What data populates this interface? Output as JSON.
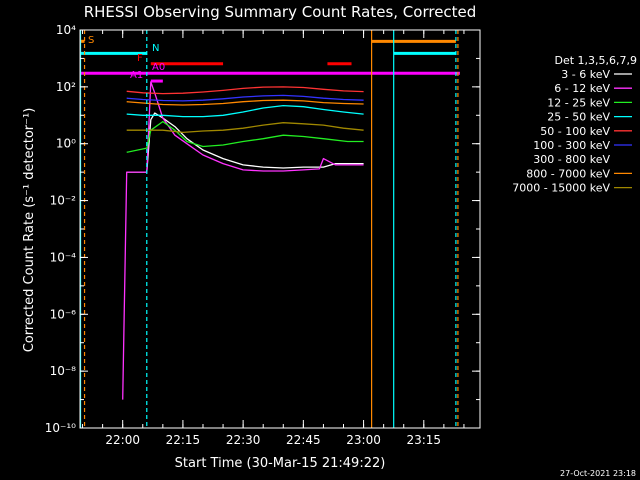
{
  "chart_data": {
    "type": "line",
    "title": "RHESSI Observing Summary Count Rates, Corrected",
    "xlabel": "Start Time (30-Mar-15 21:49:22)",
    "ylabel": "Corrected Count Rate (s⁻¹ detector⁻¹)",
    "yscale": "log",
    "ylim": [
      1e-10,
      10000
    ],
    "xlim": [
      "21:49:22",
      "23:29:00"
    ],
    "x_ticks": [
      "22:00",
      "22:15",
      "22:30",
      "22:45",
      "23:00",
      "23:15"
    ],
    "y_ticks": [
      "10⁻¹⁰",
      "10⁻⁸",
      "10⁻⁶",
      "10⁻⁴",
      "10⁻²",
      "10⁰",
      "10²",
      "10⁴"
    ],
    "legend_title": "Det 1,3,5,6,7,9",
    "legend_position": "right",
    "grid": false,
    "series": [
      {
        "name": "3 - 6 keV",
        "color": "#ffffff",
        "x": [
          "22:01",
          "22:04",
          "22:06",
          "22:07",
          "22:08",
          "22:10",
          "22:13",
          "22:16",
          "22:20",
          "22:25",
          "22:30",
          "22:35",
          "22:40",
          "22:45",
          "22:50",
          "22:53",
          "22:56",
          "23:00"
        ],
        "values": [
          0.1,
          0.1,
          0.1,
          7,
          12,
          8,
          4,
          1.5,
          0.6,
          0.3,
          0.18,
          0.15,
          0.14,
          0.15,
          0.15,
          0.2,
          0.2,
          0.2
        ]
      },
      {
        "name": "6 - 12 keV",
        "color": "#ff33ff",
        "x": [
          "22:00",
          "22:01",
          "22:02",
          "22:04",
          "22:06",
          "22:07",
          "22:08",
          "22:10",
          "22:13",
          "22:16",
          "22:20",
          "22:25",
          "22:30",
          "22:35",
          "22:40",
          "22:45",
          "22:49",
          "22:50",
          "22:53",
          "22:56",
          "23:00"
        ],
        "values": [
          1e-09,
          0.1,
          0.1,
          0.1,
          0.1,
          150,
          60,
          8,
          2,
          1,
          0.4,
          0.2,
          0.12,
          0.11,
          0.11,
          0.12,
          0.13,
          0.3,
          0.18,
          0.18,
          0.18
        ]
      },
      {
        "name": "12 - 25 keV",
        "color": "#22ee22",
        "x": [
          "22:01",
          "22:06",
          "22:07",
          "22:10",
          "22:13",
          "22:16",
          "22:20",
          "22:25",
          "22:30",
          "22:35",
          "22:40",
          "22:45",
          "22:50",
          "22:56",
          "23:00"
        ],
        "values": [
          0.5,
          0.7,
          3,
          6,
          3,
          1.2,
          0.8,
          0.9,
          1.2,
          1.5,
          2,
          1.8,
          1.5,
          1.2,
          1.2
        ]
      },
      {
        "name": "25 - 50 keV",
        "color": "#00ffff",
        "x": [
          "22:01",
          "22:05",
          "22:10",
          "22:15",
          "22:20",
          "22:25",
          "22:30",
          "22:35",
          "22:40",
          "22:45",
          "22:50",
          "22:55",
          "23:00"
        ],
        "values": [
          11,
          10,
          10,
          9,
          9,
          10,
          13,
          18,
          22,
          20,
          16,
          13,
          11
        ]
      },
      {
        "name": "50 - 100 keV",
        "color": "#ff3333",
        "x": [
          "22:01",
          "22:05",
          "22:10",
          "22:15",
          "22:20",
          "22:25",
          "22:30",
          "22:35",
          "22:40",
          "22:45",
          "22:50",
          "22:55",
          "23:00"
        ],
        "values": [
          70,
          62,
          58,
          60,
          66,
          75,
          88,
          98,
          100,
          95,
          82,
          72,
          68
        ]
      },
      {
        "name": "100 - 300 keV",
        "color": "#3333ff",
        "x": [
          "22:01",
          "22:05",
          "22:10",
          "22:15",
          "22:20",
          "22:25",
          "22:30",
          "22:35",
          "22:40",
          "22:45",
          "22:50",
          "22:55",
          "23:00"
        ],
        "values": [
          40,
          36,
          33,
          32,
          34,
          38,
          44,
          48,
          50,
          46,
          40,
          36,
          34
        ]
      },
      {
        "name": "300 - 800 keV",
        "color": "#000000",
        "x": [],
        "values": []
      },
      {
        "name": "800 - 7000 keV",
        "color": "#ff8800",
        "x": [
          "22:01",
          "22:05",
          "22:10",
          "22:15",
          "22:20",
          "22:25",
          "22:30",
          "22:35",
          "22:40",
          "22:45",
          "22:50",
          "22:55",
          "23:00"
        ],
        "values": [
          30,
          27,
          24,
          23,
          24,
          26,
          30,
          33,
          34,
          32,
          28,
          26,
          25
        ]
      },
      {
        "name": "7000 - 15000 keV",
        "color": "#a08800",
        "x": [
          "22:01",
          "22:05",
          "22:10",
          "22:15",
          "22:20",
          "22:25",
          "22:30",
          "22:35",
          "22:40",
          "22:45",
          "22:50",
          "22:55",
          "23:00"
        ],
        "values": [
          3,
          3,
          3,
          2.5,
          2.8,
          3,
          3.5,
          4.5,
          5.5,
          5,
          4.5,
          3.5,
          3
        ]
      }
    ],
    "flag_bars": [
      {
        "label": "S",
        "color": "#ff8800",
        "start": "21:49:22",
        "end": "21:50:30",
        "level": 4000
      },
      {
        "label": "N",
        "color": "#00ffff",
        "start": "21:49:22",
        "end": "22:06:00",
        "level": 1500
      },
      {
        "label": "",
        "color": "#00ffff",
        "start": "23:07:30",
        "end": "23:23:00",
        "level": 1500
      },
      {
        "label": "",
        "color": "#ff8800",
        "start": "23:02:00",
        "end": "23:23:00",
        "level": 4000
      },
      {
        "label": "F",
        "color": "#ff0000",
        "start": "22:07:00",
        "end": "22:25:00",
        "level": 650
      },
      {
        "label": "",
        "color": "#ff0000",
        "start": "22:51:00",
        "end": "22:57:00",
        "level": 650
      },
      {
        "label": "",
        "color": "#ff00ff",
        "start": "21:49:22",
        "end": "23:24:00",
        "level": 300
      },
      {
        "label": "A1",
        "color": "#ff00ff",
        "start": "22:07:00",
        "end": "22:10:00",
        "level": 160
      },
      {
        "label": "A0",
        "color": "#ff00ff",
        "start": "",
        "end": "",
        "level": null
      }
    ],
    "vlines": [
      {
        "color": "#ff8800",
        "t": "21:50:30",
        "style": "dashed"
      },
      {
        "color": "#00ffff",
        "t": "21:49:30",
        "style": "solid"
      },
      {
        "color": "#00ffff",
        "t": "22:06:00",
        "style": "dashed"
      },
      {
        "color": "#ff8800",
        "t": "23:02:00",
        "style": "solid"
      },
      {
        "color": "#00ffff",
        "t": "23:07:30",
        "style": "solid"
      },
      {
        "color": "#00ffff",
        "t": "23:23:00",
        "style": "dashed"
      },
      {
        "color": "#ff8800",
        "t": "23:23:30",
        "style": "dashed"
      }
    ],
    "footer_date": "27-Oct-2021 23:18"
  }
}
